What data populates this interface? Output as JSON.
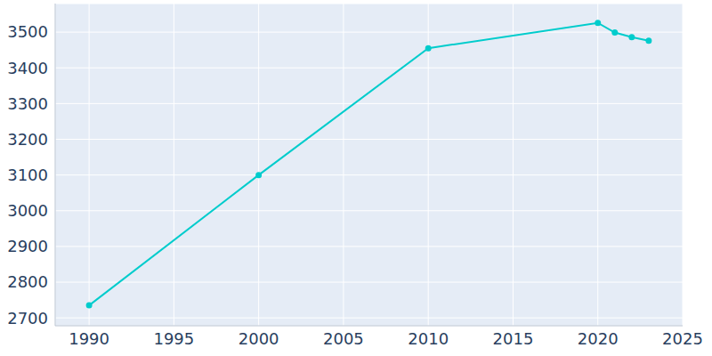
{
  "chart_data": {
    "type": "line",
    "x": [
      1990,
      2000,
      2010,
      2020,
      2021,
      2022,
      2023
    ],
    "values": [
      2735,
      3100,
      3455,
      3526,
      3499,
      3486,
      3476
    ],
    "color": "#00cccc",
    "xlim": [
      1988,
      2025
    ],
    "xticks": [
      1990,
      1995,
      2000,
      2005,
      2010,
      2015,
      2020,
      2025
    ],
    "ylim": [
      2678,
      3580
    ],
    "yticks": [
      2700,
      2800,
      2900,
      3000,
      3100,
      3200,
      3300,
      3400,
      3500
    ],
    "grid": true,
    "marker": "circle"
  }
}
